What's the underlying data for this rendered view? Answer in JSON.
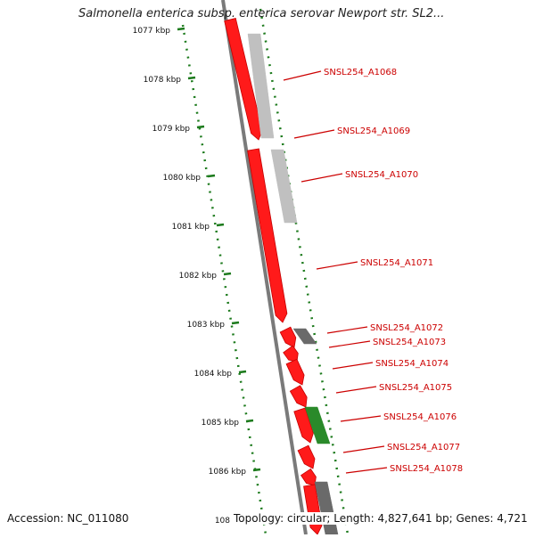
{
  "title": "Salmonella enterica subsp. enterica serovar Newport str. SL2...",
  "accession": "Accession: NC_011080",
  "topology": "Topology: circular; Length: 4,827,641 bp; Genes: 4,721",
  "ruler_labels": [
    "1077 kbp",
    "1078 kbp",
    "1079 kbp",
    "1080 kbp",
    "1081 kbp",
    "1082 kbp",
    "1083 kbp",
    "1084 kbp",
    "1085 kbp",
    "1086 kbp",
    "108"
  ],
  "genes": [
    {
      "label": "SNSL254_A1068"
    },
    {
      "label": "SNSL254_A1069"
    },
    {
      "label": "SNSL254_A1070"
    },
    {
      "label": "SNSL254_A1071"
    },
    {
      "label": "SNSL254_A1072"
    },
    {
      "label": "SNSL254_A1073"
    },
    {
      "label": "SNSL254_A1074"
    },
    {
      "label": "SNSL254_A1075"
    },
    {
      "label": "SNSL254_A1076"
    },
    {
      "label": "SNSL254_A1077"
    },
    {
      "label": "SNSL254_A1078"
    }
  ],
  "colors": {
    "cds": "#ff1a1a",
    "cds_dark": "#c40000",
    "backbone": "#7a7a7a",
    "ruler": "#1c7a1c",
    "gene_label": "#cc0000",
    "hit_light": "#c0c0c0",
    "hit_dark": "#6a6a6a",
    "hit_green": "#2a8a2a"
  }
}
